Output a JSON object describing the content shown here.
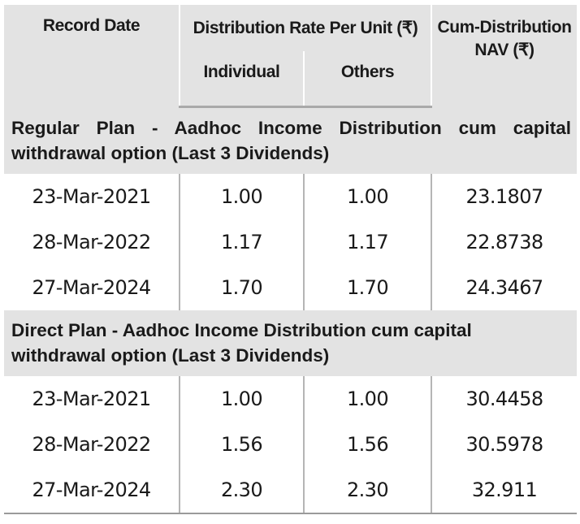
{
  "header": {
    "record_date": "Record Date",
    "distribution_rate": "Distribution Rate Per Unit  (₹)",
    "individual": "Individual",
    "others": "Others",
    "cum_nav_line1": "Cum-Distribution",
    "cum_nav_line2": "NAV (₹)"
  },
  "sections": [
    {
      "title": "Regular Plan - Aadhoc Income Distribution cum capital withdrawal option (Last 3 Dividends)",
      "rows": [
        {
          "date": "23-Mar-2021",
          "individual": "1.00",
          "others": "1.00",
          "nav": "23.1807"
        },
        {
          "date": "28-Mar-2022",
          "individual": "1.17",
          "others": "1.17",
          "nav": "22.8738"
        },
        {
          "date": "27-Mar-2024",
          "individual": "1.70",
          "others": "1.70",
          "nav": "24.3467"
        }
      ]
    },
    {
      "title": "Direct Plan - Aadhoc Income Distribution cum capital withdrawal option (Last 3 Dividends)",
      "rows": [
        {
          "date": "23-Mar-2021",
          "individual": "1.00",
          "others": "1.00",
          "nav": "30.4458"
        },
        {
          "date": "28-Mar-2022",
          "individual": "1.56",
          "others": "1.56",
          "nav": "30.5978"
        },
        {
          "date": "27-Mar-2024",
          "individual": "2.30",
          "others": "2.30",
          "nav": "32.911"
        }
      ]
    }
  ]
}
